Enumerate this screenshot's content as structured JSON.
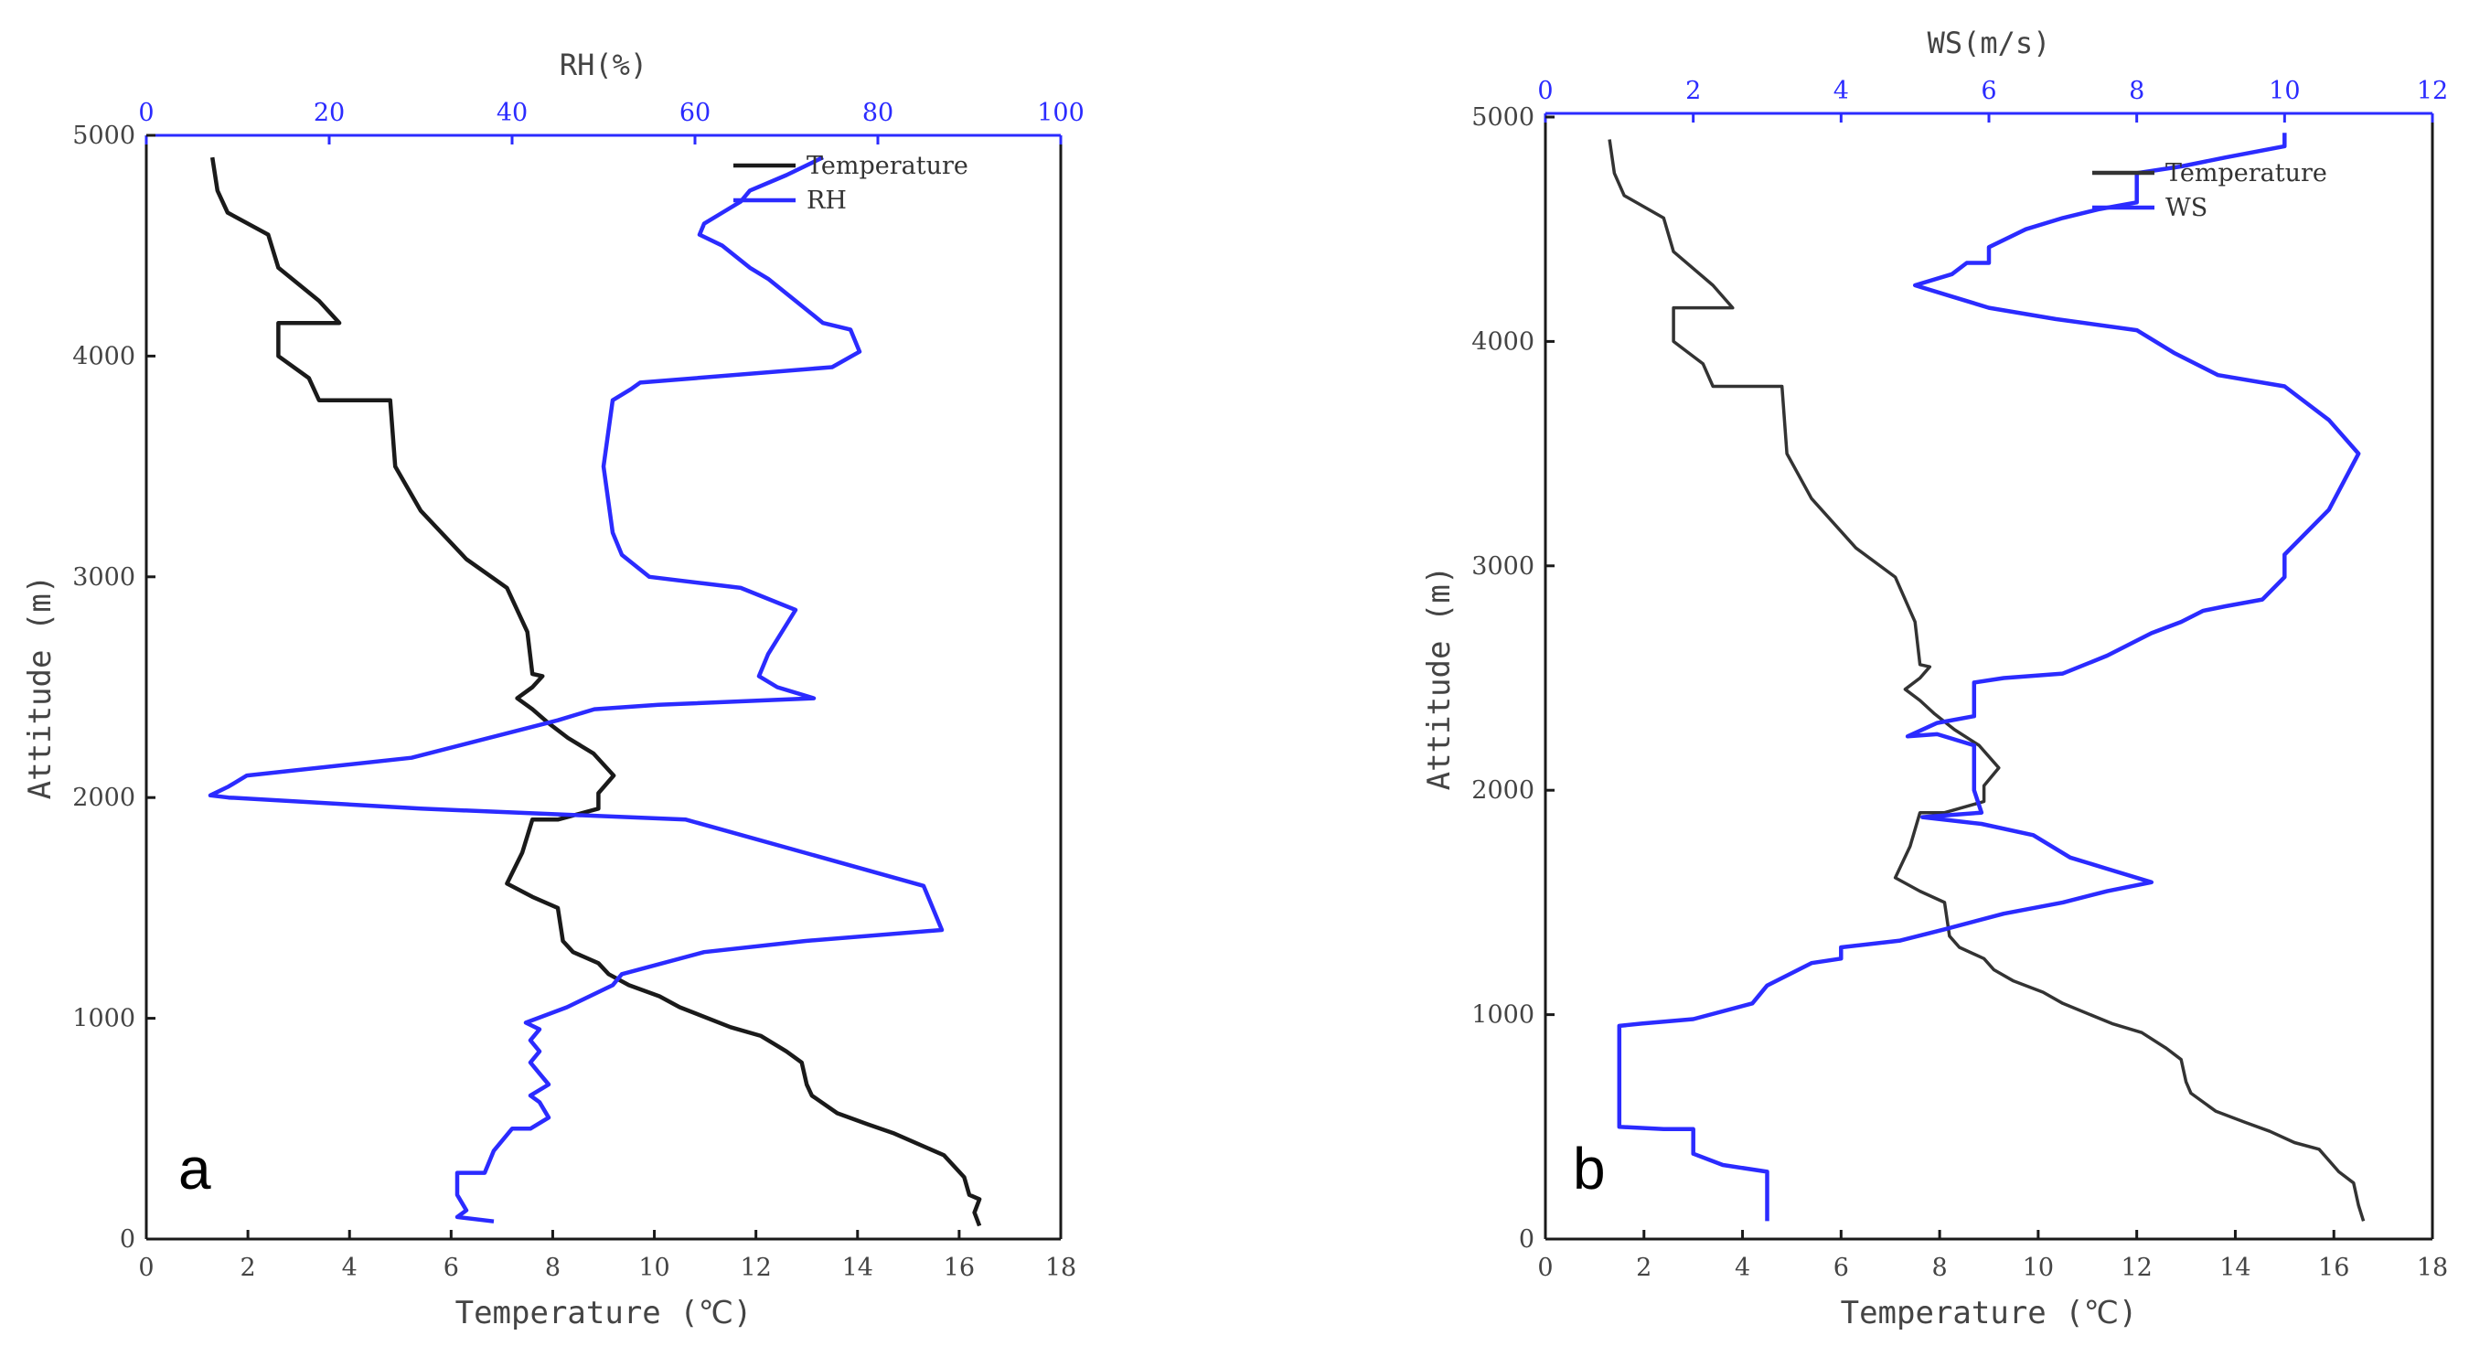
{
  "chart_data": [
    {
      "type": "line",
      "panel_label": "a",
      "xlabel": "Temperature (℃)",
      "xlim": [
        0,
        18
      ],
      "x_ticks": [
        "0",
        "2",
        "4",
        "6",
        "8",
        "10",
        "12",
        "14",
        "16",
        "18"
      ],
      "x2label": "RH(%)",
      "x2lim": [
        0,
        100
      ],
      "x2_ticks": [
        "0",
        "20",
        "40",
        "60",
        "80",
        "100"
      ],
      "ylabel": "Attitude (m)",
      "ylim": [
        0,
        5000
      ],
      "y_ticks": [
        "0",
        "1000",
        "2000",
        "3000",
        "4000",
        "5000"
      ],
      "legend_position": "top-right",
      "colors": {
        "temperature": "#1a1a1a",
        "secondary": "#2b2bff"
      },
      "series": [
        {
          "name": "Temperature",
          "axis": "bottom",
          "points": [
            [
              16.4,
              60
            ],
            [
              16.3,
              120
            ],
            [
              16.4,
              180
            ],
            [
              16.2,
              200
            ],
            [
              16.1,
              280
            ],
            [
              15.7,
              380
            ],
            [
              15.2,
              430
            ],
            [
              14.7,
              480
            ],
            [
              14.2,
              520
            ],
            [
              13.6,
              570
            ],
            [
              13.1,
              650
            ],
            [
              13,
              700
            ],
            [
              12.9,
              800
            ],
            [
              12.6,
              850
            ],
            [
              12.1,
              920
            ],
            [
              11.5,
              960
            ],
            [
              10.5,
              1050
            ],
            [
              10.1,
              1100
            ],
            [
              9.5,
              1150
            ],
            [
              9.1,
              1200
            ],
            [
              8.9,
              1250
            ],
            [
              8.4,
              1300
            ],
            [
              8.2,
              1350
            ],
            [
              8.1,
              1500
            ],
            [
              7.6,
              1550
            ],
            [
              7.1,
              1610
            ],
            [
              7.4,
              1750
            ],
            [
              7.6,
              1900
            ],
            [
              8.1,
              1900
            ],
            [
              8.9,
              1950
            ],
            [
              8.9,
              2020
            ],
            [
              9.2,
              2100
            ],
            [
              8.8,
              2200
            ],
            [
              8.3,
              2270
            ],
            [
              7.9,
              2340
            ],
            [
              7.6,
              2400
            ],
            [
              7.3,
              2450
            ],
            [
              7.6,
              2500
            ],
            [
              7.8,
              2550
            ],
            [
              7.6,
              2560
            ],
            [
              7.5,
              2750
            ],
            [
              7.1,
              2950
            ],
            [
              6.3,
              3080
            ],
            [
              5.4,
              3300
            ],
            [
              4.9,
              3500
            ],
            [
              4.8,
              3800
            ],
            [
              3.4,
              3800
            ],
            [
              3.2,
              3900
            ],
            [
              2.6,
              4000
            ],
            [
              2.6,
              4150
            ],
            [
              3.8,
              4150
            ],
            [
              3.4,
              4250
            ],
            [
              2.6,
              4400
            ],
            [
              2.4,
              4550
            ],
            [
              1.6,
              4650
            ],
            [
              1.4,
              4750
            ],
            [
              1.3,
              4900
            ]
          ]
        },
        {
          "name": "RH",
          "axis": "top",
          "points": [
            [
              38,
              80
            ],
            [
              34,
              100
            ],
            [
              35,
              130
            ],
            [
              34,
              200
            ],
            [
              34,
              300
            ],
            [
              37,
              300
            ],
            [
              38,
              400
            ],
            [
              40,
              500
            ],
            [
              42,
              500
            ],
            [
              44,
              550
            ],
            [
              43,
              620
            ],
            [
              42,
              650
            ],
            [
              44,
              700
            ],
            [
              43,
              750
            ],
            [
              42,
              800
            ],
            [
              43,
              850
            ],
            [
              42,
              900
            ],
            [
              43,
              950
            ],
            [
              41.5,
              980
            ],
            [
              46,
              1050
            ],
            [
              51,
              1150
            ],
            [
              52,
              1200
            ],
            [
              61,
              1300
            ],
            [
              72,
              1350
            ],
            [
              87,
              1400
            ],
            [
              86,
              1500
            ],
            [
              85,
              1600
            ],
            [
              72,
              1750
            ],
            [
              59,
              1900
            ],
            [
              30,
              1950
            ],
            [
              9,
              2000
            ],
            [
              7,
              2010
            ],
            [
              9,
              2050
            ],
            [
              11,
              2100
            ],
            [
              29,
              2180
            ],
            [
              45,
              2350
            ],
            [
              49,
              2400
            ],
            [
              56,
              2420
            ],
            [
              73,
              2450
            ],
            [
              69,
              2500
            ],
            [
              67,
              2550
            ],
            [
              68,
              2650
            ],
            [
              71,
              2850
            ],
            [
              65,
              2950
            ],
            [
              55,
              3000
            ],
            [
              52,
              3100
            ],
            [
              51,
              3200
            ],
            [
              50,
              3500
            ],
            [
              51,
              3800
            ],
            [
              53,
              3850
            ],
            [
              54,
              3880
            ],
            [
              75,
              3950
            ],
            [
              78,
              4020
            ],
            [
              77,
              4120
            ],
            [
              74,
              4150
            ],
            [
              71,
              4250
            ],
            [
              68,
              4350
            ],
            [
              66,
              4400
            ],
            [
              63,
              4500
            ],
            [
              60.5,
              4550
            ],
            [
              61,
              4600
            ],
            [
              63,
              4650
            ],
            [
              65,
              4700
            ],
            [
              66,
              4750
            ],
            [
              70,
              4820
            ],
            [
              74,
              4900
            ]
          ]
        }
      ]
    },
    {
      "type": "line",
      "panel_label": "b",
      "xlabel": "Temperature (℃)",
      "xlim": [
        0,
        18
      ],
      "x_ticks": [
        "0",
        "2",
        "4",
        "6",
        "8",
        "10",
        "12",
        "14",
        "16",
        "18"
      ],
      "x2label": "WS(m/s)",
      "x2lim": [
        0,
        12
      ],
      "x2_ticks": [
        "0",
        "2",
        "4",
        "6",
        "8",
        "10",
        "12"
      ],
      "ylabel": "Attitude (m)",
      "ylim": [
        0,
        5000
      ],
      "y_ticks": [
        "0",
        "1000",
        "2000",
        "3000",
        "4000",
        "5000"
      ],
      "legend_position": "top-right",
      "colors": {
        "temperature": "#333333",
        "secondary": "#2b2bff"
      },
      "series": [
        {
          "name": "Temperature",
          "axis": "bottom",
          "points": [
            [
              16.6,
              80
            ],
            [
              16.5,
              150
            ],
            [
              16.4,
              250
            ],
            [
              16.1,
              300
            ],
            [
              15.7,
              400
            ],
            [
              15.2,
              430
            ],
            [
              14.7,
              480
            ],
            [
              14.2,
              520
            ],
            [
              13.6,
              570
            ],
            [
              13.1,
              650
            ],
            [
              13,
              700
            ],
            [
              12.9,
              800
            ],
            [
              12.6,
              850
            ],
            [
              12.1,
              920
            ],
            [
              11.5,
              960
            ],
            [
              10.5,
              1050
            ],
            [
              10.1,
              1100
            ],
            [
              9.5,
              1150
            ],
            [
              9.1,
              1200
            ],
            [
              8.9,
              1250
            ],
            [
              8.4,
              1300
            ],
            [
              8.2,
              1350
            ],
            [
              8.1,
              1500
            ],
            [
              7.6,
              1550
            ],
            [
              7.1,
              1610
            ],
            [
              7.4,
              1750
            ],
            [
              7.6,
              1900
            ],
            [
              8.1,
              1900
            ],
            [
              8.9,
              1950
            ],
            [
              8.9,
              2020
            ],
            [
              9.2,
              2100
            ],
            [
              8.8,
              2200
            ],
            [
              8.3,
              2270
            ],
            [
              7.9,
              2340
            ],
            [
              7.6,
              2400
            ],
            [
              7.3,
              2450
            ],
            [
              7.6,
              2500
            ],
            [
              7.8,
              2550
            ],
            [
              7.6,
              2560
            ],
            [
              7.5,
              2750
            ],
            [
              7.1,
              2950
            ],
            [
              6.3,
              3080
            ],
            [
              5.4,
              3300
            ],
            [
              4.9,
              3500
            ],
            [
              4.8,
              3800
            ],
            [
              3.4,
              3800
            ],
            [
              3.2,
              3900
            ],
            [
              2.6,
              4000
            ],
            [
              2.6,
              4150
            ],
            [
              3.8,
              4150
            ],
            [
              3.4,
              4250
            ],
            [
              2.6,
              4400
            ],
            [
              2.4,
              4550
            ],
            [
              1.6,
              4650
            ],
            [
              1.4,
              4750
            ],
            [
              1.3,
              4900
            ]
          ]
        },
        {
          "name": "WS",
          "axis": "top",
          "points": [
            [
              3,
              80
            ],
            [
              3,
              300
            ],
            [
              2.4,
              330
            ],
            [
              2,
              380
            ],
            [
              2,
              490
            ],
            [
              1.6,
              490
            ],
            [
              1,
              500
            ],
            [
              1,
              950
            ],
            [
              1.3,
              960
            ],
            [
              2,
              980
            ],
            [
              2.8,
              1050
            ],
            [
              3,
              1130
            ],
            [
              3.6,
              1230
            ],
            [
              4,
              1250
            ],
            [
              4,
              1300
            ],
            [
              4.8,
              1330
            ],
            [
              5.4,
              1380
            ],
            [
              6.2,
              1450
            ],
            [
              7,
              1500
            ],
            [
              7.6,
              1550
            ],
            [
              8.2,
              1590
            ],
            [
              7.6,
              1650
            ],
            [
              7.1,
              1700
            ],
            [
              6.6,
              1800
            ],
            [
              5.9,
              1850
            ],
            [
              5.1,
              1880
            ],
            [
              5.9,
              1900
            ],
            [
              5.8,
              2000
            ],
            [
              5.8,
              2200
            ],
            [
              5.3,
              2250
            ],
            [
              4.9,
              2240
            ],
            [
              5.3,
              2300
            ],
            [
              5.8,
              2330
            ],
            [
              5.8,
              2480
            ],
            [
              6.2,
              2500
            ],
            [
              7,
              2520
            ],
            [
              7.6,
              2600
            ],
            [
              8.2,
              2700
            ],
            [
              8.6,
              2750
            ],
            [
              8.9,
              2800
            ],
            [
              9.2,
              2820
            ],
            [
              9.7,
              2850
            ],
            [
              10,
              2950
            ],
            [
              10,
              3050
            ],
            [
              10.6,
              3250
            ],
            [
              11,
              3500
            ],
            [
              10.6,
              3650
            ],
            [
              10,
              3800
            ],
            [
              9.1,
              3850
            ],
            [
              8.5,
              3950
            ],
            [
              8,
              4050
            ],
            [
              6.9,
              4100
            ],
            [
              6,
              4150
            ],
            [
              5.5,
              4200
            ],
            [
              5,
              4250
            ],
            [
              5.5,
              4300
            ],
            [
              5.7,
              4350
            ],
            [
              6,
              4350
            ],
            [
              6,
              4420
            ],
            [
              6.5,
              4500
            ],
            [
              7,
              4550
            ],
            [
              7.5,
              4590
            ],
            [
              8,
              4620
            ],
            [
              8,
              4750
            ],
            [
              8.6,
              4780
            ],
            [
              9.2,
              4820
            ],
            [
              10,
              4870
            ],
            [
              10,
              4930
            ]
          ]
        }
      ]
    }
  ]
}
